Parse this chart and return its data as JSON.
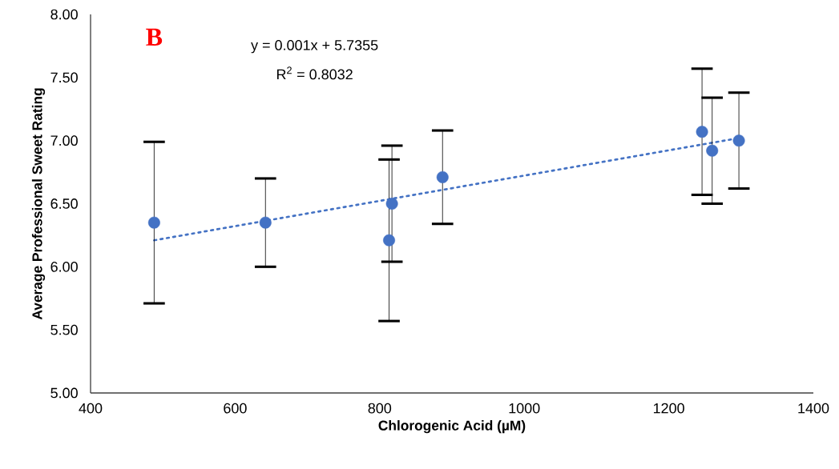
{
  "chart_data": {
    "type": "scatter",
    "xlabel": "Chlorogenic Acid (µM)",
    "ylabel": "Average Professional Sweet Rating",
    "annotations": [
      "B",
      "y = 0.001x + 5.7355",
      "R$^{2}$ = 0.8032"
    ],
    "xlim": [
      400,
      1400
    ],
    "xticks": [
      400,
      600,
      800,
      1000,
      1200,
      1400
    ],
    "ylim": [
      5,
      8
    ],
    "yticks": [
      {
        "value": 5,
        "label": "5.00"
      },
      {
        "value": 5.5,
        "label": "5.50"
      },
      {
        "value": 6,
        "label": "6.00"
      },
      {
        "value": 6.5,
        "label": "6.50"
      },
      {
        "value": 7,
        "label": "7.00"
      },
      {
        "value": 7.5,
        "label": "7.50"
      },
      {
        "value": 8,
        "label": "8.00"
      }
    ],
    "grid": false,
    "x": [
      488,
      642,
      817,
      813,
      887,
      1246,
      1260,
      1297
    ],
    "series": [
      {
        "type": "scatter",
        "color": "#4472c4",
        "marker": "circle",
        "values": [
          6.35,
          6.35,
          6.5,
          6.21,
          6.71,
          7.07,
          6.92,
          7.0
        ],
        "errors": [
          0.64,
          0.35,
          0.46,
          0.64,
          0.37,
          0.5,
          0.42,
          0.38
        ]
      },
      {
        "type": "line",
        "color": "#4472c4",
        "marker": "none",
        "line_style": "dotted",
        "x": [
          488,
          1297
        ],
        "values": [
          6.21,
          7.02
        ]
      }
    ]
  }
}
